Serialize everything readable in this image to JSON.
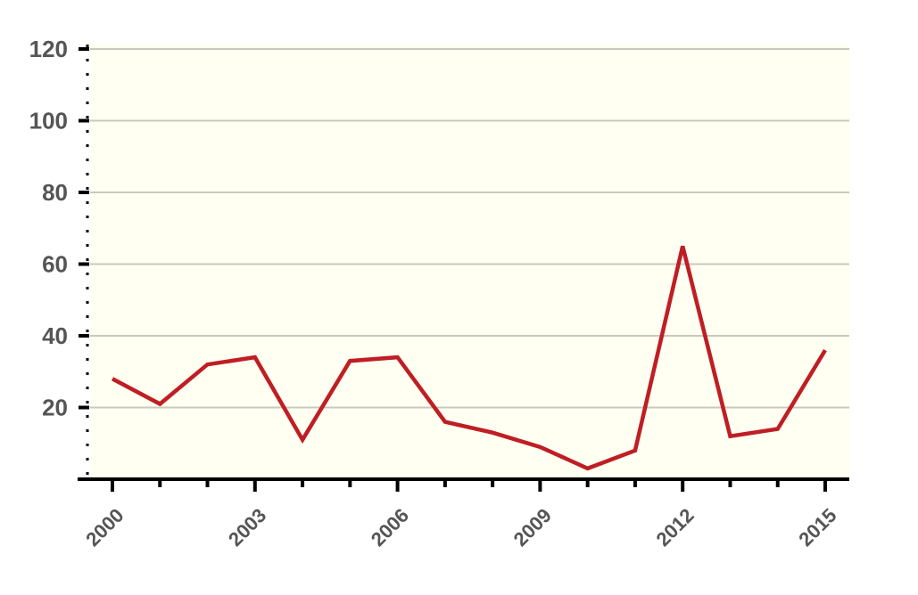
{
  "chart_data": {
    "type": "line",
    "title": "",
    "xlabel": "",
    "ylabel": "",
    "x": [
      2000,
      2001,
      2002,
      2003,
      2004,
      2005,
      2006,
      2007,
      2008,
      2009,
      2010,
      2011,
      2012,
      2013,
      2014,
      2015
    ],
    "series": [
      {
        "values": [
          28,
          21,
          32,
          34,
          11,
          33,
          34,
          16,
          13,
          9,
          3,
          8,
          65,
          12,
          14,
          36
        ],
        "color": "#bf1e24"
      }
    ],
    "xlim": [
      2000,
      2015
    ],
    "ylim": [
      0,
      120
    ],
    "x_ticks": [
      "2000",
      "2003",
      "2006",
      "2009",
      "2012",
      "2015"
    ],
    "y_ticks": [
      "20",
      "40",
      "60",
      "80",
      "100",
      "120"
    ],
    "grid": "horizontal",
    "legend": "none",
    "colors": {
      "plot_background": "#fffff2",
      "gridline": "#c8c8c0",
      "axis": "#000000",
      "tick_label": "#555555"
    }
  }
}
